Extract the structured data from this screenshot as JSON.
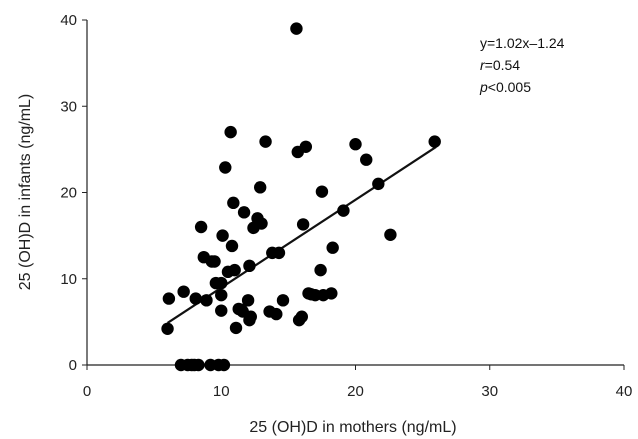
{
  "chart_data": {
    "type": "scatter",
    "title": "",
    "xlabel": "25 (OH)D in mothers (ng/mL)",
    "ylabel": "25 (OH)D in infants (ng/mL)",
    "xlim": [
      0,
      40
    ],
    "ylim": [
      0,
      40
    ],
    "xticks": [
      0,
      10,
      20,
      30,
      40
    ],
    "yticks": [
      0,
      10,
      20,
      30,
      40
    ],
    "grid": false,
    "annotations": {
      "equation": "y=1.02x–1.24",
      "r_symbol": "r",
      "r_rest": "=0.54",
      "p_symbol": "p",
      "p_rest": "<0.005"
    },
    "trendline": {
      "x": [
        6,
        26
      ],
      "y": [
        4.88,
        25.28
      ]
    },
    "series": [
      {
        "x": [
          15.6,
          6.0,
          6.1,
          7.0,
          7.2,
          7.5,
          7.8,
          8.0,
          8.3,
          8.5,
          8.7,
          8.9,
          9.2,
          9.5,
          9.6,
          9.8,
          10.0,
          10.0,
          10.0,
          10.1,
          10.2,
          10.3,
          10.5,
          10.7,
          10.8,
          10.9,
          11.0,
          11.1,
          11.3,
          11.5,
          11.7,
          12.0,
          12.1,
          12.2,
          12.4,
          12.7,
          12.9,
          13.0,
          13.3,
          13.6,
          13.8,
          14.1,
          14.3,
          14.6,
          15.7,
          15.8,
          16.0,
          16.1,
          16.3,
          16.5,
          16.7,
          17.0,
          17.4,
          17.5,
          17.6,
          18.2,
          18.3,
          19.1,
          20.0,
          20.8,
          21.7,
          22.6,
          25.9,
          9.3,
          8.1,
          12.1,
          11.6
        ],
        "y": [
          39.0,
          4.2,
          7.7,
          0.0,
          8.5,
          0.0,
          0.0,
          0.0,
          0.0,
          16.0,
          12.5,
          7.5,
          0.0,
          12.0,
          9.5,
          0.0,
          9.5,
          8.1,
          6.3,
          15.0,
          0.0,
          22.9,
          10.8,
          27.0,
          13.8,
          18.8,
          11.0,
          4.3,
          6.5,
          6.4,
          17.7,
          7.5,
          5.2,
          5.6,
          15.9,
          17.0,
          20.6,
          16.4,
          25.9,
          6.2,
          13.0,
          5.9,
          13.0,
          7.5,
          24.7,
          5.2,
          5.6,
          16.3,
          25.3,
          8.3,
          8.2,
          8.1,
          11.0,
          20.1,
          8.1,
          8.3,
          13.6,
          17.9,
          25.6,
          23.8,
          21.0,
          15.1,
          25.9,
          12.0,
          7.7,
          11.5,
          6.2
        ]
      }
    ]
  }
}
